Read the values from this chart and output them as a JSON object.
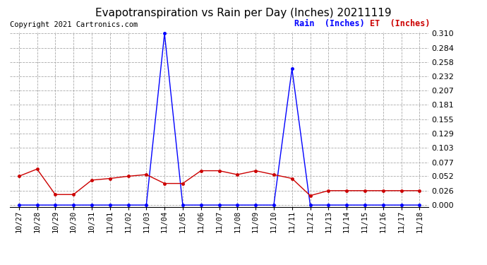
{
  "title": "Evapotranspiration vs Rain per Day (Inches) 20211119",
  "copyright": "Copyright 2021 Cartronics.com",
  "legend_rain": "Rain  (Inches)",
  "legend_et": "ET  (Inches)",
  "dates": [
    "10/27",
    "10/28",
    "10/29",
    "10/30",
    "10/31",
    "11/01",
    "11/02",
    "11/03",
    "11/04",
    "11/05",
    "11/06",
    "11/07",
    "11/08",
    "11/09",
    "11/10",
    "11/11",
    "11/12",
    "11/13",
    "11/14",
    "11/15",
    "11/16",
    "11/17",
    "11/18"
  ],
  "rain": [
    0.0,
    0.0,
    0.0,
    0.0,
    0.0,
    0.0,
    0.0,
    0.0,
    0.31,
    0.0,
    0.0,
    0.0,
    0.0,
    0.0,
    0.0,
    0.246,
    0.0,
    0.0,
    0.0,
    0.0,
    0.0,
    0.0,
    0.0
  ],
  "et": [
    0.052,
    0.065,
    0.019,
    0.019,
    0.045,
    0.048,
    0.052,
    0.055,
    0.039,
    0.039,
    0.062,
    0.062,
    0.055,
    0.062,
    0.055,
    0.048,
    0.017,
    0.026,
    0.026,
    0.026,
    0.026,
    0.026,
    0.026
  ],
  "rain_color": "#0000ff",
  "et_color": "#cc0000",
  "ylim_max": 0.31,
  "yticks": [
    0.0,
    0.026,
    0.052,
    0.077,
    0.103,
    0.129,
    0.155,
    0.181,
    0.207,
    0.232,
    0.258,
    0.284,
    0.31
  ],
  "background_color": "#ffffff",
  "grid_color": "#aaaaaa",
  "title_fontsize": 11,
  "copyright_fontsize": 7.5,
  "legend_fontsize": 8.5,
  "tick_fontsize": 7.5,
  "ytick_fontsize": 8
}
